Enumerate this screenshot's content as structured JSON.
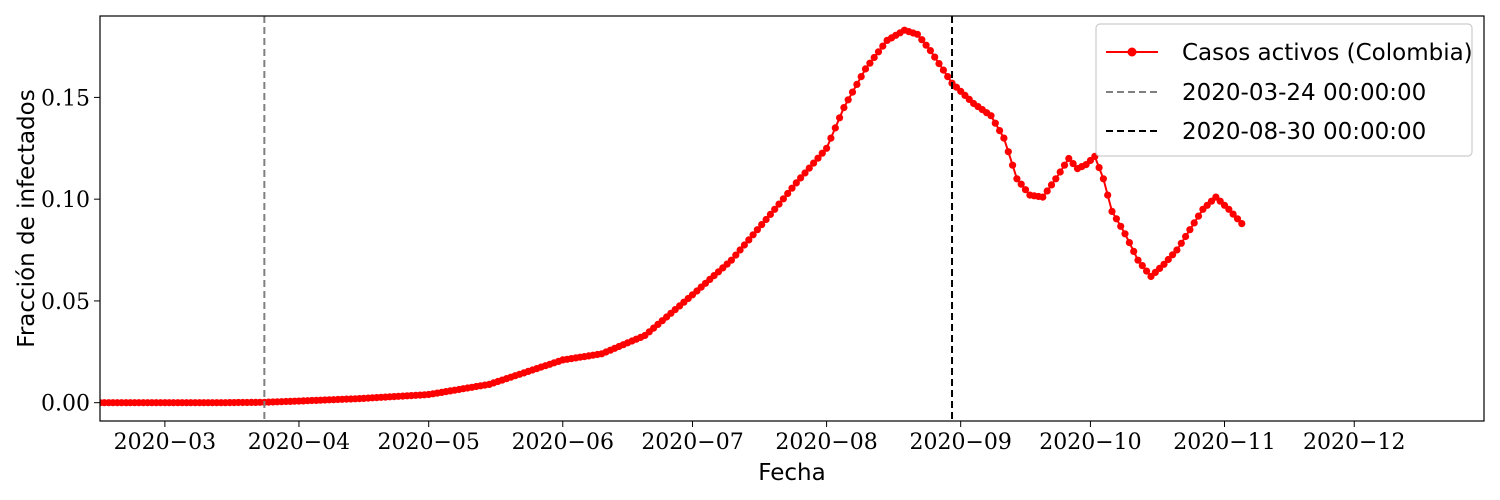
{
  "chart_data": {
    "type": "line",
    "xlabel": "Fecha",
    "ylabel": "Fracción de infectados",
    "xlim": [
      "2020-02-15",
      "2020-12-31"
    ],
    "ylim": [
      -0.009,
      0.19
    ],
    "x_ticks": [
      "2020-03-01",
      "2020-04-01",
      "2020-05-01",
      "2020-06-01",
      "2020-07-01",
      "2020-08-01",
      "2020-09-01",
      "2020-10-01",
      "2020-11-01",
      "2020-12-01"
    ],
    "x_tick_labels": [
      "2020−03",
      "2020−04",
      "2020−05",
      "2020−06",
      "2020−07",
      "2020−08",
      "2020−09",
      "2020−10",
      "2020−11",
      "2020−12"
    ],
    "y_ticks": [
      0.0,
      0.05,
      0.1,
      0.15
    ],
    "y_tick_labels": [
      "0.00",
      "0.05",
      "0.10",
      "0.15"
    ],
    "grid": false,
    "legend_position": "top-right",
    "series": [
      {
        "name": "Casos activos (Colombia)",
        "color": "#ff0000",
        "marker": "circle",
        "points": [
          [
            "2020-02-15",
            0.0
          ],
          [
            "2020-03-01",
            0.0
          ],
          [
            "2020-03-15",
            0.0
          ],
          [
            "2020-03-24",
            0.0002
          ],
          [
            "2020-04-01",
            0.0008
          ],
          [
            "2020-04-15",
            0.002
          ],
          [
            "2020-05-01",
            0.004
          ],
          [
            "2020-05-15",
            0.009
          ],
          [
            "2020-06-01",
            0.021
          ],
          [
            "2020-06-10",
            0.024
          ],
          [
            "2020-06-20",
            0.033
          ],
          [
            "2020-07-01",
            0.053
          ],
          [
            "2020-07-10",
            0.07
          ],
          [
            "2020-07-20",
            0.095
          ],
          [
            "2020-07-25",
            0.108
          ],
          [
            "2020-08-01",
            0.125
          ],
          [
            "2020-08-05",
            0.145
          ],
          [
            "2020-08-10",
            0.164
          ],
          [
            "2020-08-15",
            0.178
          ],
          [
            "2020-08-19",
            0.183
          ],
          [
            "2020-08-22",
            0.181
          ],
          [
            "2020-08-25",
            0.173
          ],
          [
            "2020-08-30",
            0.157
          ],
          [
            "2020-09-04",
            0.147
          ],
          [
            "2020-09-08",
            0.141
          ],
          [
            "2020-09-11",
            0.13
          ],
          [
            "2020-09-14",
            0.11
          ],
          [
            "2020-09-17",
            0.102
          ],
          [
            "2020-09-20",
            0.101
          ],
          [
            "2020-09-23",
            0.11
          ],
          [
            "2020-09-26",
            0.12
          ],
          [
            "2020-09-28",
            0.115
          ],
          [
            "2020-09-30",
            0.117
          ],
          [
            "2020-10-02",
            0.121
          ],
          [
            "2020-10-04",
            0.11
          ],
          [
            "2020-10-06",
            0.094
          ],
          [
            "2020-10-09",
            0.083
          ],
          [
            "2020-10-12",
            0.07
          ],
          [
            "2020-10-15",
            0.062
          ],
          [
            "2020-10-18",
            0.068
          ],
          [
            "2020-10-21",
            0.075
          ],
          [
            "2020-10-24",
            0.085
          ],
          [
            "2020-10-27",
            0.095
          ],
          [
            "2020-10-30",
            0.101
          ],
          [
            "2020-11-02",
            0.095
          ],
          [
            "2020-11-05",
            0.088
          ]
        ]
      },
      {
        "name": "2020-03-24 00:00:00",
        "type": "vline",
        "x": "2020-03-24",
        "color": "#808080",
        "linestyle": "dashed"
      },
      {
        "name": "2020-08-30 00:00:00",
        "type": "vline",
        "x": "2020-08-30",
        "color": "#000000",
        "linestyle": "dashed"
      }
    ]
  }
}
